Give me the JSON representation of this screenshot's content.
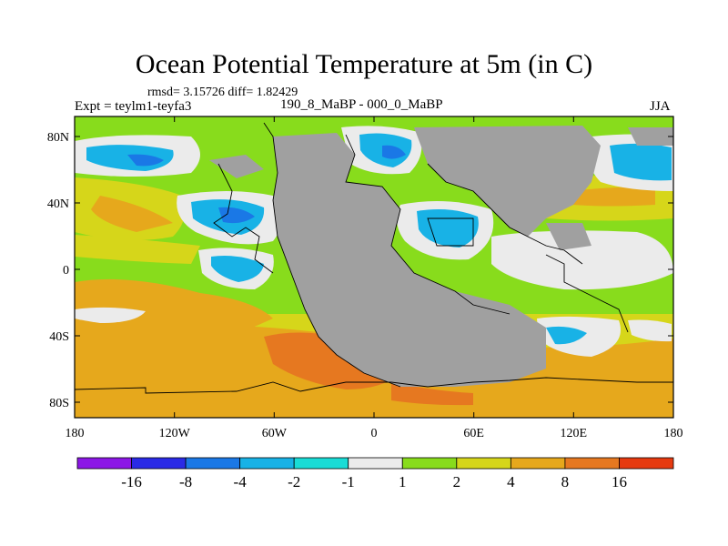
{
  "title": "Ocean Potential Temperature at 5m (in C)",
  "stats_text": "rmsd= 3.15726 diff= 1.82429",
  "experiment_text": "Expt = teylm1-teyfa3",
  "period_text": "190_8_MaBP - 000_0_MaBP",
  "season_text": "JJA",
  "lat_ticks": [
    "80N",
    "40N",
    "0",
    "40S",
    "80S"
  ],
  "lon_ticks": [
    "180",
    "120W",
    "60W",
    "0",
    "60E",
    "120E",
    "180"
  ],
  "colorbar": {
    "colors": [
      "#8c17e6",
      "#2a2ae6",
      "#1a78e6",
      "#18b2e6",
      "#19dcd6",
      "#ebebeb",
      "#88dc1c",
      "#d6d61a",
      "#e6a81c",
      "#e67820",
      "#e63a10"
    ],
    "labels": [
      "-16",
      "-8",
      "-4",
      "-2",
      "-1",
      "1",
      "2",
      "4",
      "8",
      "16"
    ]
  },
  "colors": {
    "land": "#a0a0a0",
    "frame": "#000000"
  }
}
